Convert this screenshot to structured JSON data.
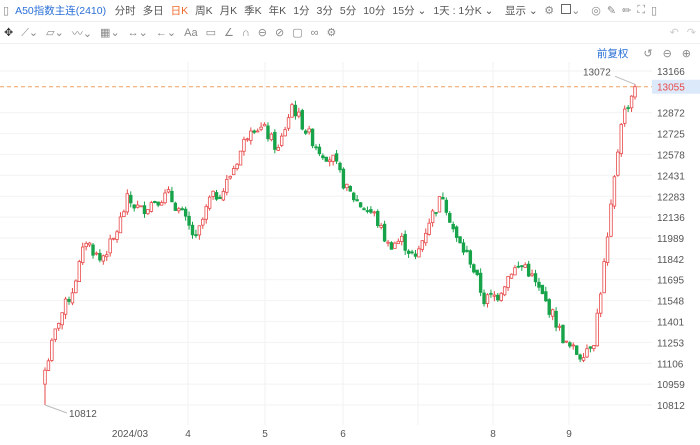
{
  "toolbar": {
    "symbol": "A50指数主连(2410)",
    "periods": [
      "分时",
      "多日",
      "日K",
      "周K",
      "月K",
      "季K",
      "年K",
      "1分",
      "3分",
      "5分",
      "10分",
      "15分"
    ],
    "active_period": "日K",
    "range": "1天 : 1分K",
    "display": "显示"
  },
  "draw_tools": [
    "move-icon",
    "line-icon",
    "polyline-icon",
    "wave-icon",
    "fib-icon",
    "measure-icon",
    "arrow-icon",
    "text-icon",
    "comment-icon",
    "angle-icon",
    "magnet-icon",
    "lock-icon",
    "hide-icon",
    "delete-icon",
    "compare-icon",
    "settings-icon"
  ],
  "text_tool": "Aa",
  "chart_header": {
    "adjust": "前复权"
  },
  "colors": {
    "up": "#e84a4a",
    "down": "#17a34a",
    "last_line": "#f0a060",
    "accent": "#2a6fd6"
  },
  "chart_data": {
    "type": "candlestick",
    "y_ticks": [
      13166,
      13055,
      12872,
      12725,
      12578,
      12431,
      12283,
      12136,
      11989,
      11842,
      11695,
      11548,
      11401,
      11253,
      11106,
      10959,
      10812
    ],
    "ylim": [
      10812,
      13166
    ],
    "x_ticks": [
      "2024/03",
      "4",
      "5",
      "6",
      "8",
      "9"
    ],
    "last_price": 13055,
    "high_label": 13072,
    "low_label": 10812,
    "closes": [
      11058,
      11411,
      11622,
      11975,
      11834,
      11975,
      12257,
      12186,
      12257,
      12292,
      12151,
      11975,
      12257,
      12327,
      12539,
      12785,
      12750,
      12609,
      12926,
      12750,
      12609,
      12539,
      12327,
      12221,
      12151,
      11939,
      11975,
      11834,
      12116,
      12292,
      11975,
      11834,
      11552,
      11587,
      11763,
      11798,
      11622,
      11446,
      11234,
      11164,
      11270,
      11975,
      12820,
      13055
    ]
  }
}
